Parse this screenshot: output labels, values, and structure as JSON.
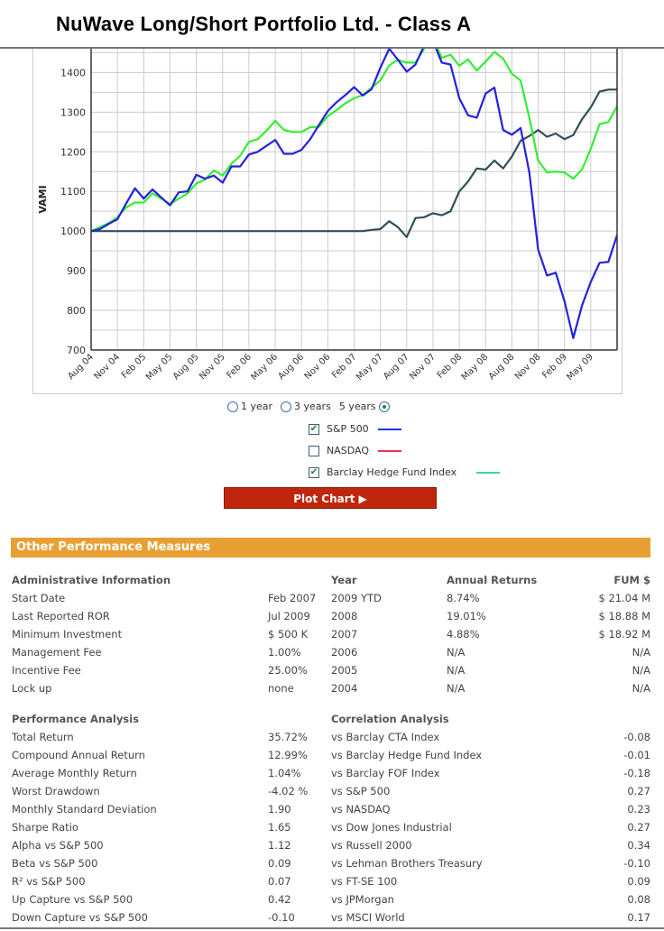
{
  "page": {
    "title": "NuWave Long/Short Portfolio Ltd. - Class A"
  },
  "chart_data": {
    "type": "line",
    "ylabel": "VAMI",
    "xlabel": "",
    "ylim": [
      700,
      1460
    ],
    "yticks": [
      700,
      800,
      900,
      1000,
      1100,
      1200,
      1300,
      1400
    ],
    "xticks": [
      "Aug 04",
      "Nov 04",
      "Feb 05",
      "May 05",
      "Aug 05",
      "Nov 05",
      "Feb 06",
      "May 06",
      "Aug 06",
      "Nov 06",
      "Feb 07",
      "May 07",
      "Aug 07",
      "Nov 07",
      "Feb 08",
      "May 08",
      "Aug 08",
      "Nov 08",
      "Feb 09",
      "May 09"
    ],
    "n_months": 61,
    "series": [
      {
        "name": "S&P 500",
        "color": "#2222dd",
        "values": [
          1000,
          1005,
          1018,
          1030,
          1070,
          1108,
          1082,
          1105,
          1085,
          1065,
          1098,
          1100,
          1142,
          1132,
          1140,
          1122,
          1163,
          1163,
          1193,
          1200,
          1215,
          1230,
          1195,
          1195,
          1205,
          1232,
          1268,
          1303,
          1325,
          1343,
          1363,
          1342,
          1358,
          1412,
          1460,
          1432,
          1402,
          1420,
          1468,
          1480,
          1425,
          1420,
          1335,
          1292,
          1286,
          1347,
          1362,
          1255,
          1243,
          1260,
          1147,
          953,
          888,
          895,
          823,
          730,
          812,
          872,
          920,
          922,
          990
        ]
      },
      {
        "name": "NASDAQ / Fund VAMI",
        "color": "#2f4f5a",
        "values": [
          1000,
          1000,
          1000,
          1000,
          1000,
          1000,
          1000,
          1000,
          1000,
          1000,
          1000,
          1000,
          1000,
          1000,
          1000,
          1000,
          1000,
          1000,
          1000,
          1000,
          1000,
          1000,
          1000,
          1000,
          1000,
          1000,
          1000,
          1000,
          1000,
          1000,
          1000,
          1000,
          1003,
          1005,
          1025,
          1010,
          985,
          1033,
          1035,
          1045,
          1040,
          1050,
          1100,
          1125,
          1158,
          1155,
          1178,
          1158,
          1188,
          1228,
          1240,
          1255,
          1238,
          1246,
          1232,
          1242,
          1282,
          1312,
          1352,
          1357,
          1357
        ]
      },
      {
        "name": "Barclay Hedge Fund Index",
        "color": "#33ee33",
        "values": [
          1000,
          1010,
          1020,
          1035,
          1060,
          1072,
          1072,
          1095,
          1082,
          1068,
          1082,
          1095,
          1120,
          1130,
          1153,
          1140,
          1170,
          1190,
          1225,
          1232,
          1253,
          1278,
          1255,
          1250,
          1250,
          1262,
          1263,
          1290,
          1305,
          1322,
          1335,
          1343,
          1362,
          1380,
          1418,
          1432,
          1425,
          1425,
          1460,
          1485,
          1437,
          1445,
          1417,
          1433,
          1405,
          1428,
          1452,
          1435,
          1397,
          1380,
          1285,
          1178,
          1148,
          1150,
          1148,
          1132,
          1155,
          1208,
          1270,
          1275,
          1315
        ]
      }
    ]
  },
  "range": {
    "one_year": "1 year",
    "three_years": "3 years",
    "five_years": "5 years"
  },
  "legend": [
    {
      "label": "S&P 500",
      "checked": "✔",
      "color": "#2233ee"
    },
    {
      "label": "NASDAQ",
      "checked": "",
      "color": "#ee3355"
    },
    {
      "label": "Barclay Hedge Fund Index",
      "checked": "✔",
      "color": "#33dd99"
    }
  ],
  "plot_button": "Plot Chart ▶",
  "section_title": "Other Performance Measures",
  "admin": {
    "header": "Administrative Information",
    "rows": [
      [
        "Start Date",
        "Feb 2007"
      ],
      [
        "Last Reported ROR",
        "Jul 2009"
      ],
      [
        "Minimum Investment",
        "$ 500 K"
      ],
      [
        "Management Fee",
        "1.00%"
      ],
      [
        "Incentive Fee",
        "25.00%"
      ],
      [
        "Lock up",
        "none"
      ]
    ]
  },
  "annual": {
    "headers": [
      "Year",
      "Annual Returns",
      "FUM $"
    ],
    "rows": [
      [
        "2009 YTD",
        "8.74%",
        "$ 21.04 M"
      ],
      [
        "2008",
        "19.01%",
        "$ 18.88 M"
      ],
      [
        "2007",
        "4.88%",
        "$ 18.92 M"
      ],
      [
        "2006",
        "N/A",
        "N/A"
      ],
      [
        "2005",
        "N/A",
        "N/A"
      ],
      [
        "2004",
        "N/A",
        "N/A"
      ]
    ]
  },
  "performance": {
    "header": "Performance Analysis",
    "rows": [
      [
        "Total Return",
        "35.72%"
      ],
      [
        "Compound Annual Return",
        "12.99%"
      ],
      [
        "Average Monthly Return",
        "1.04%"
      ],
      [
        "Worst Drawdown",
        "-4.02 %"
      ],
      [
        "Monthly Standard Deviation",
        "1.90"
      ],
      [
        "Sharpe Ratio",
        "1.65"
      ],
      [
        "Alpha vs S&P 500",
        "1.12"
      ],
      [
        "Beta vs S&P 500",
        "0.09"
      ],
      [
        "R² vs S&P 500",
        "0.07"
      ],
      [
        "Up Capture vs S&P 500",
        "0.42"
      ],
      [
        "Down Capture vs S&P 500",
        "-0.10"
      ]
    ]
  },
  "correlation": {
    "header": "Correlation Analysis",
    "rows": [
      [
        "vs Barclay CTA Index",
        "-0.08"
      ],
      [
        "vs Barclay Hedge Fund Index",
        "-0.01"
      ],
      [
        "vs Barclay FOF Index",
        "-0.18"
      ],
      [
        "vs S&P 500",
        "0.27"
      ],
      [
        "vs NASDAQ",
        "0.23"
      ],
      [
        "vs Dow Jones Industrial",
        "0.27"
      ],
      [
        "vs Russell 2000",
        "0.34"
      ],
      [
        "vs Lehman Brothers Treasury",
        "-0.10"
      ],
      [
        "vs FT-SE 100",
        "0.09"
      ],
      [
        "vs JPMorgan",
        "0.08"
      ],
      [
        "vs MSCI World",
        "0.17"
      ]
    ]
  }
}
